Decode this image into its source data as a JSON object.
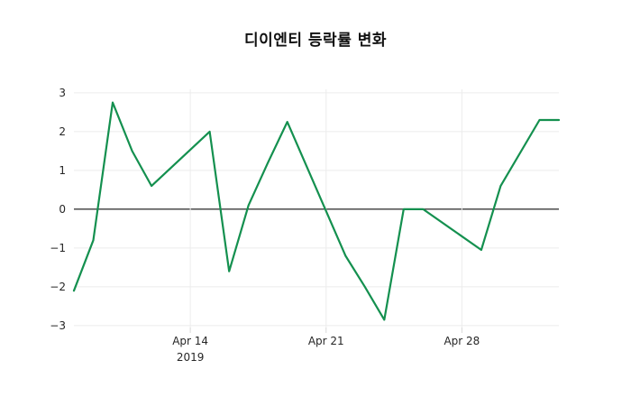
{
  "title": "디이엔티 등락률 변화",
  "colors": {
    "background": "#ffffff",
    "line": "#14904f",
    "grid": "#ececec",
    "zero_line": "#3a3a3a",
    "tick_mark": "#d9d9d9",
    "tick_text": "#262626",
    "title_text": "#111111"
  },
  "chart_data": {
    "type": "line",
    "title": "디이엔티 등락률 변화",
    "xlabel": "",
    "ylabel": "",
    "legend": "none",
    "grid": true,
    "zeroline": true,
    "x_range": [
      "2019-04-08",
      "2019-05-03"
    ],
    "ylim": [
      -3.05,
      3.09
    ],
    "x": [
      "2019-04-08",
      "2019-04-09",
      "2019-04-10",
      "2019-04-11",
      "2019-04-12",
      "2019-04-15",
      "2019-04-16",
      "2019-04-17",
      "2019-04-18",
      "2019-04-19",
      "2019-04-22",
      "2019-04-23",
      "2019-04-24",
      "2019-04-25",
      "2019-04-26",
      "2019-04-29",
      "2019-04-30",
      "2019-05-02",
      "2019-05-03"
    ],
    "values": [
      -2.1,
      -0.8,
      2.75,
      1.5,
      0.6,
      2.0,
      -1.6,
      0.1,
      1.2,
      2.25,
      -1.2,
      -2.0,
      -2.85,
      0.0,
      0.0,
      -1.05,
      0.6,
      2.3,
      2.3
    ],
    "y_ticks": [
      3,
      2,
      1,
      0,
      -1,
      -2,
      -3
    ],
    "x_ticks": [
      {
        "date": "2019-04-14",
        "label": "Apr 14",
        "sublabel": "2019"
      },
      {
        "date": "2019-04-21",
        "label": "Apr 21",
        "sublabel": ""
      },
      {
        "date": "2019-04-28",
        "label": "Apr 28",
        "sublabel": ""
      }
    ]
  }
}
